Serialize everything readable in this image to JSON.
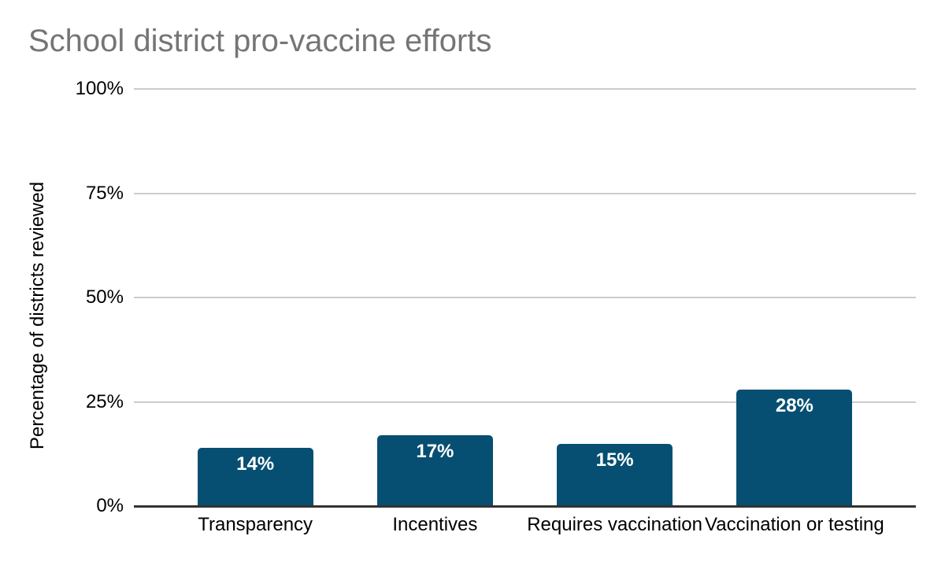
{
  "chart_data": {
    "type": "bar",
    "title": "School district pro-vaccine efforts",
    "xlabel": "",
    "ylabel": "Percentage of districts reviewed",
    "categories": [
      "Transparency",
      "Incentives",
      "Requires vaccination",
      "Vaccination or testing"
    ],
    "values": [
      14,
      17,
      15,
      28
    ],
    "data_labels": [
      "14%",
      "17%",
      "15%",
      "28%"
    ],
    "yticks": [
      {
        "value": 100,
        "label": "100%"
      },
      {
        "value": 75,
        "label": "75%"
      },
      {
        "value": 50,
        "label": "50%"
      },
      {
        "value": 25,
        "label": "25%"
      },
      {
        "value": 0,
        "label": "0%"
      }
    ],
    "ylim": [
      0,
      100
    ],
    "grid": true,
    "legend_position": "none",
    "colors": {
      "background": "#ffffff",
      "bar": "#064f72",
      "data_label": "#ffffff",
      "title": "#757575",
      "axis_text": "#000000",
      "gridline": "#cccccc",
      "axis_line": "#333333"
    }
  }
}
